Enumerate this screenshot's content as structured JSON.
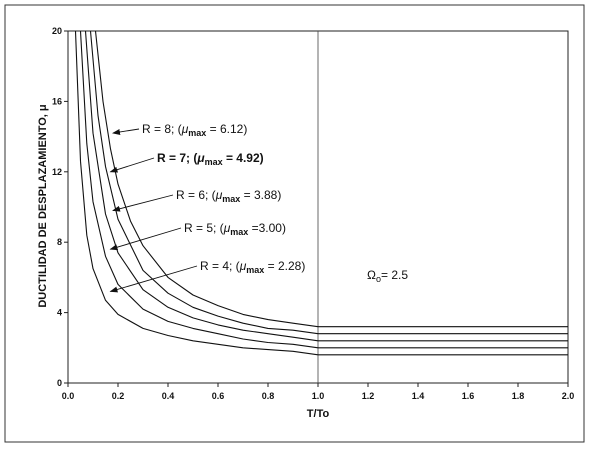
{
  "chart_data": {
    "type": "line",
    "xlabel": "T/To",
    "ylabel": "DUCTILIDAD DE DESPLAZAMIENTO, μ",
    "xlim": [
      0,
      2.0
    ],
    "ylim": [
      0,
      20
    ],
    "x_ticks": [
      "0.0",
      "0.2",
      "0.4",
      "0.6",
      "0.8",
      "1.0",
      "1.2",
      "1.4",
      "1.6",
      "1.8",
      "2.0"
    ],
    "y_ticks": [
      "0",
      "4",
      "8",
      "12",
      "16",
      "20"
    ],
    "grid": false,
    "vertical_reference_line_x": 1.0,
    "series": [
      {
        "name": "R = 4",
        "mu_max": "2.28",
        "x": [
          0.03,
          0.05,
          0.075,
          0.1,
          0.15,
          0.2,
          0.3,
          0.4,
          0.5,
          0.6,
          0.7,
          0.8,
          0.9,
          1.0,
          1.2,
          1.4,
          1.6,
          1.8,
          2.0
        ],
        "y": [
          20,
          12.6,
          8.4,
          6.5,
          4.7,
          3.9,
          3.1,
          2.7,
          2.4,
          2.2,
          2.0,
          1.9,
          1.8,
          1.6,
          1.6,
          1.6,
          1.6,
          1.6,
          1.6
        ]
      },
      {
        "name": "R = 5",
        "mu_max": "3.00",
        "x": [
          0.05,
          0.075,
          0.1,
          0.15,
          0.2,
          0.3,
          0.4,
          0.5,
          0.6,
          0.7,
          0.8,
          0.9,
          1.0,
          1.2,
          1.4,
          1.6,
          1.8,
          2.0
        ],
        "y": [
          20,
          13.6,
          10.3,
          7.2,
          5.6,
          4.2,
          3.5,
          3.1,
          2.8,
          2.5,
          2.3,
          2.2,
          2.0,
          2.0,
          2.0,
          2.0,
          2.0,
          2.0
        ]
      },
      {
        "name": "R = 6",
        "mu_max": "3.88",
        "x": [
          0.07,
          0.1,
          0.15,
          0.2,
          0.3,
          0.4,
          0.5,
          0.6,
          0.7,
          0.8,
          0.9,
          1.0,
          1.2,
          1.4,
          1.6,
          1.8,
          2.0
        ],
        "y": [
          20,
          14.2,
          9.6,
          7.4,
          5.3,
          4.3,
          3.7,
          3.3,
          3.0,
          2.8,
          2.6,
          2.4,
          2.4,
          2.4,
          2.4,
          2.4,
          2.4
        ]
      },
      {
        "name": "R = 7",
        "mu_max": "4.92",
        "x": [
          0.09,
          0.12,
          0.15,
          0.2,
          0.3,
          0.4,
          0.5,
          0.6,
          0.7,
          0.8,
          0.9,
          1.0,
          1.2,
          1.4,
          1.6,
          1.8,
          2.0
        ],
        "y": [
          20,
          15.2,
          12.3,
          9.3,
          6.4,
          5.1,
          4.3,
          3.8,
          3.4,
          3.1,
          3.0,
          2.8,
          2.8,
          2.8,
          2.8,
          2.8,
          2.8
        ]
      },
      {
        "name": "R = 8",
        "mu_max": "6.12",
        "x": [
          0.11,
          0.14,
          0.17,
          0.2,
          0.25,
          0.3,
          0.4,
          0.5,
          0.6,
          0.7,
          0.8,
          0.9,
          1.0,
          1.2,
          1.4,
          1.6,
          1.8,
          2.0
        ],
        "y": [
          20,
          16.0,
          13.3,
          11.3,
          9.2,
          7.8,
          6.0,
          5.0,
          4.4,
          3.9,
          3.6,
          3.4,
          3.2,
          3.2,
          3.2,
          3.2,
          3.2,
          3.2
        ]
      }
    ],
    "annotations": [
      {
        "prefix": "R = 8; (",
        "mu": "μ",
        "sub": "max",
        "value": " = 6.12)",
        "bold": false,
        "arrow_to": [
          0.18,
          14.2
        ]
      },
      {
        "prefix": "R = 7; (",
        "mu": "μ",
        "sub": "max",
        "value": " = 4.92)",
        "bold": true,
        "arrow_to": [
          0.17,
          12.0
        ]
      },
      {
        "prefix": "R = 6;  (",
        "mu": "μ",
        "sub": "max",
        "value": " = 3.88)",
        "bold": false,
        "arrow_to": [
          0.18,
          9.8
        ]
      },
      {
        "prefix": "R = 5; (",
        "mu": "μ",
        "sub": "max",
        "value": " =3.00)",
        "bold": false,
        "arrow_to": [
          0.17,
          7.6
        ]
      },
      {
        "prefix": "R = 4; (",
        "mu": "μ",
        "sub": "max",
        "value": " = 2.28)",
        "bold": false,
        "arrow_to": [
          0.17,
          5.2
        ]
      }
    ],
    "omega_label": {
      "symbol": "Ω",
      "sub": "o",
      "value": "= 2.5"
    }
  }
}
